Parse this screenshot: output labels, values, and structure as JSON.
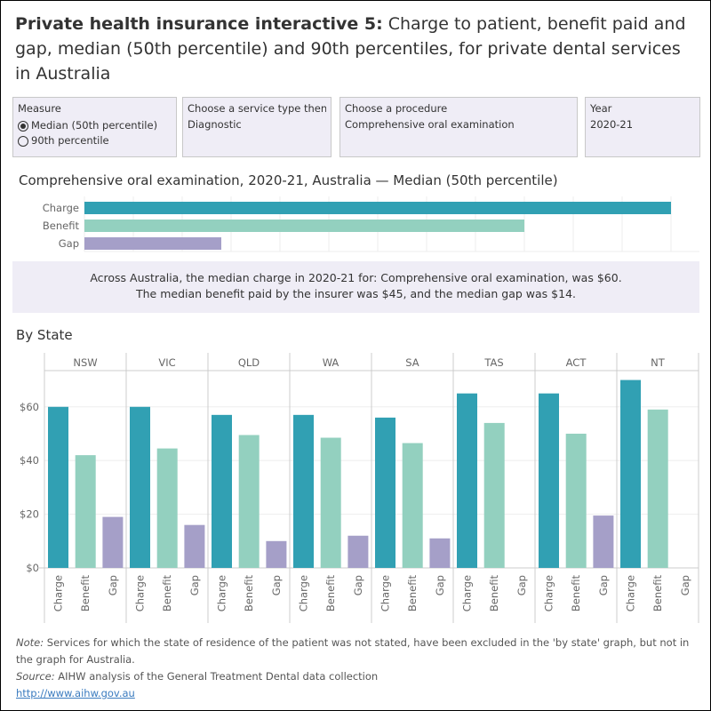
{
  "title": {
    "bold": "Private health insurance interactive 5:",
    "rest": " Charge to patient, benefit paid and gap, median (50th percentile) and 90th percentiles, for private dental services in Australia"
  },
  "filters": {
    "measure": {
      "label": "Measure",
      "options": [
        "Median (50th percentile)",
        "90th percentile"
      ],
      "selected": 0
    },
    "service_type": {
      "label": "Choose a service type then...",
      "value": "Diagnostic"
    },
    "procedure": {
      "label": "Choose a procedure",
      "value": "Comprehensive oral examination"
    },
    "year": {
      "label": "Year",
      "value": "2020-21"
    }
  },
  "summary": {
    "line1": "Across Australia, the median charge in 2020-21 for:  Comprehensive oral examination, was $60.",
    "line2": "The median benefit paid by the insurer was $45, and the median gap was $14."
  },
  "by_state_heading": "By State",
  "footer": {
    "note_label": "Note:",
    "note": " Services for which the state of residence of the patient was not stated, have been excluded in the 'by state' graph, but not in the graph for Australia.",
    "source_label": "Source:",
    "source": " AIHW analysis of the General Treatment Dental data collection",
    "link": "http://www.aihw.gov.au"
  },
  "colors": {
    "Charge": "#31a0b3",
    "Benefit": "#93d0bf",
    "Gap": "#a59fc8"
  },
  "chart_data": [
    {
      "type": "bar",
      "orientation": "horizontal",
      "title": "Comprehensive oral examination, 2020-21, Australia  — Median (50th percentile)",
      "categories": [
        "Charge",
        "Benefit",
        "Gap"
      ],
      "values": [
        60,
        45,
        14
      ],
      "xlim": [
        0,
        60
      ],
      "grid": true
    },
    {
      "type": "bar",
      "title": "By State",
      "facets": [
        "NSW",
        "VIC",
        "QLD",
        "WA",
        "SA",
        "TAS",
        "ACT",
        "NT"
      ],
      "categories": [
        "Charge",
        "Benefit",
        "Gap"
      ],
      "values": {
        "NSW": [
          60,
          42,
          19
        ],
        "VIC": [
          60,
          44.5,
          16
        ],
        "QLD": [
          57,
          49.5,
          10
        ],
        "WA": [
          57,
          48.5,
          12
        ],
        "SA": [
          56,
          46.5,
          11
        ],
        "TAS": [
          65,
          54,
          null
        ],
        "ACT": [
          65,
          50,
          19.5
        ],
        "NT": [
          70,
          59,
          null
        ]
      },
      "yticks": [
        "$0",
        "$20",
        "$40",
        "$60"
      ],
      "ylim": [
        0,
        73.5
      ],
      "grid": true
    }
  ]
}
